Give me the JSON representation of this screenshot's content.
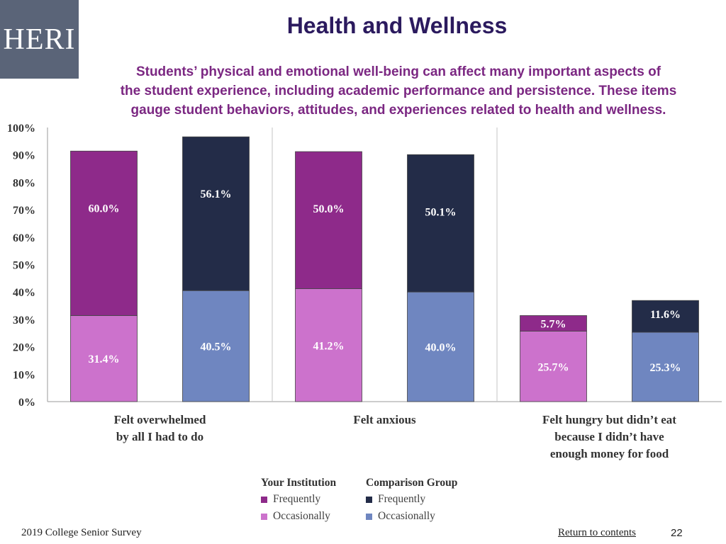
{
  "logo": {
    "text": "HERI"
  },
  "header": {
    "title": "Health and Wellness",
    "subtitle_lines": [
      "Students’ physical and emotional well-being can affect many important aspects of",
      "the student experience, including academic performance and persistence. These items",
      "gauge student behaviors, attitudes, and experiences related to health and wellness."
    ]
  },
  "chart_data": {
    "type": "bar",
    "stacked": true,
    "categories": [
      {
        "lines": [
          "Felt overwhelmed",
          "by all I had to do"
        ]
      },
      {
        "lines": [
          "Felt anxious"
        ]
      },
      {
        "lines": [
          "Felt hungry but didn’t eat",
          "because I didn’t have",
          "enough money for food"
        ]
      }
    ],
    "y_ticks": [
      "0%",
      "10%",
      "20%",
      "30%",
      "40%",
      "50%",
      "60%",
      "70%",
      "80%",
      "90%",
      "100%"
    ],
    "ylim": [
      0,
      100
    ],
    "groups": [
      {
        "name": "Your Institution",
        "series": [
          {
            "name": "Occasionally",
            "values": [
              31.4,
              41.2,
              25.7
            ],
            "labels": [
              "31.4%",
              "41.2%",
              "25.7%"
            ]
          },
          {
            "name": "Frequently",
            "values": [
              60.0,
              50.0,
              5.7
            ],
            "labels": [
              "60.0%",
              "50.0%",
              "5.7%"
            ]
          }
        ]
      },
      {
        "name": "Comparison Group",
        "series": [
          {
            "name": "Occasionally",
            "values": [
              40.5,
              40.0,
              25.3
            ],
            "labels": [
              "40.5%",
              "40.0%",
              "25.3%"
            ]
          },
          {
            "name": "Frequently",
            "values": [
              56.1,
              50.1,
              11.6
            ],
            "labels": [
              "56.1%",
              "50.1%",
              "11.6%"
            ]
          }
        ]
      }
    ],
    "colors": {
      "inst_frequently": "#8e2a8a",
      "inst_occasionally": "#cc72cc",
      "comp_frequently": "#232c48",
      "comp_occasionally": "#6f86c0"
    }
  },
  "legend": {
    "institution": {
      "header": "Your Institution",
      "frequently": "Frequently",
      "occasionally": "Occasionally"
    },
    "comparison": {
      "header": "Comparison Group",
      "frequently": "Frequently",
      "occasionally": "Occasionally"
    }
  },
  "footer": {
    "survey": "2019 College Senior Survey",
    "link": "Return to contents",
    "page": "22"
  }
}
